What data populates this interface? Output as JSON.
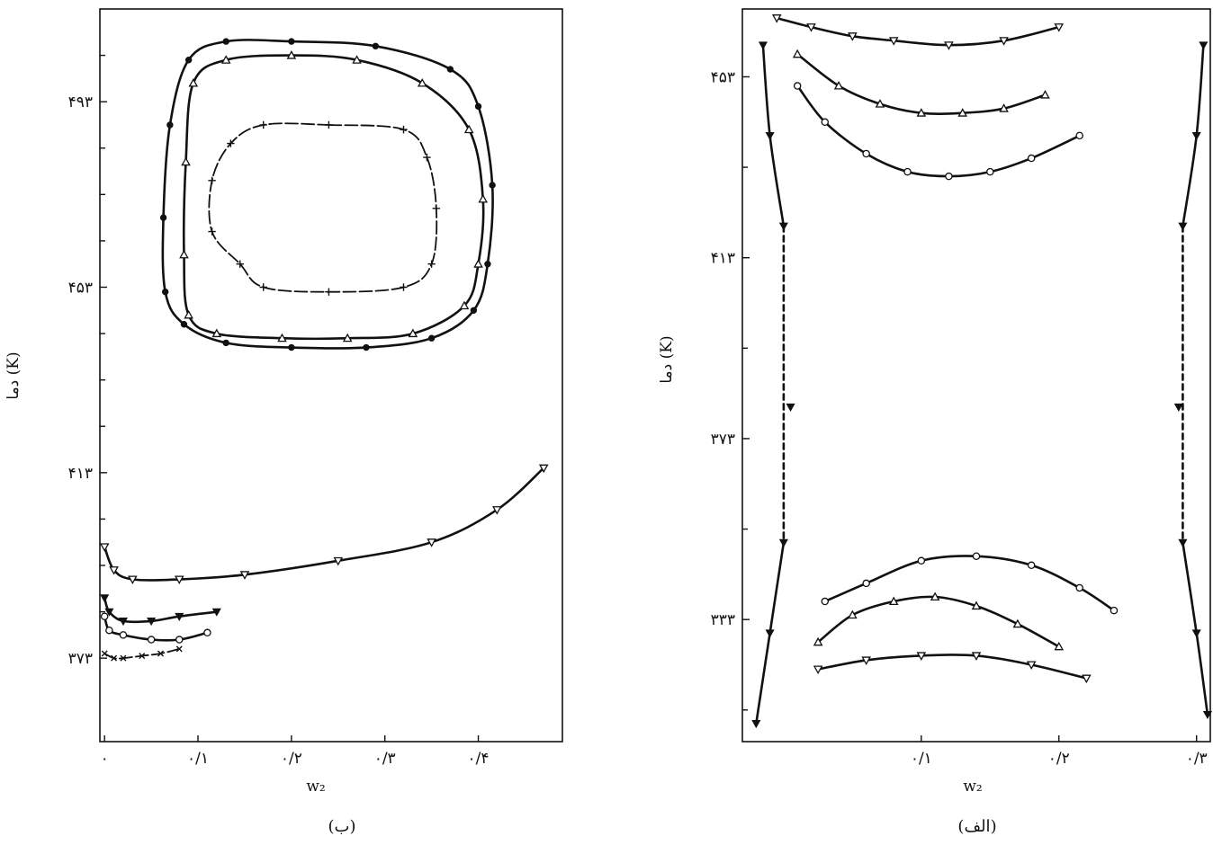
{
  "chart_data": [
    {
      "id": "panel-b",
      "type": "line",
      "caption": "(ب)",
      "xlabel": "w₂",
      "ylabel": "دما (K)",
      "xlim": [
        -0.005,
        0.49
      ],
      "ylim": [
        355,
        513
      ],
      "x_ticks": [
        {
          "v": 0,
          "label": "۰"
        },
        {
          "v": 0.1,
          "label": "۰/۱"
        },
        {
          "v": 0.2,
          "label": "۰/۲"
        },
        {
          "v": 0.3,
          "label": "۰/۳"
        },
        {
          "v": 0.4,
          "label": "۰/۴"
        }
      ],
      "y_ticks": [
        {
          "v": 373,
          "label": "۳۷۳"
        },
        {
          "v": 413,
          "label": "۴۱۳"
        },
        {
          "v": 453,
          "label": "۴۵۳"
        },
        {
          "v": 493,
          "label": "۴۹۳"
        }
      ],
      "y_minor_ticks": [
        383,
        393,
        403,
        423,
        433,
        443,
        463,
        473,
        483,
        503
      ],
      "series": [
        {
          "marker": "dot",
          "closed": true,
          "style": "thick",
          "x": [
            0.2,
            0.29,
            0.37,
            0.4,
            0.415,
            0.41,
            0.395,
            0.35,
            0.28,
            0.2,
            0.13,
            0.085,
            0.065,
            0.063,
            0.07,
            0.09,
            0.13
          ],
          "y": [
            506,
            505,
            500,
            492,
            475,
            458,
            448,
            442,
            440,
            440,
            441,
            445,
            452,
            468,
            488,
            502,
            506
          ]
        },
        {
          "marker": "tri-up",
          "closed": true,
          "style": "thick",
          "x": [
            0.2,
            0.27,
            0.34,
            0.39,
            0.405,
            0.4,
            0.385,
            0.33,
            0.26,
            0.19,
            0.12,
            0.09,
            0.085,
            0.087,
            0.095,
            0.13
          ],
          "y": [
            503,
            502,
            497,
            487,
            472,
            458,
            449,
            443,
            442,
            442,
            443,
            447,
            460,
            480,
            497,
            502
          ]
        },
        {
          "marker": "plus",
          "closed": true,
          "style": "thin",
          "x": [
            0.24,
            0.32,
            0.345,
            0.355,
            0.35,
            0.32,
            0.24,
            0.17,
            0.145,
            0.115,
            0.115,
            0.135,
            0.17
          ],
          "y": [
            488,
            487,
            481,
            470,
            458,
            453,
            452,
            453,
            458,
            465,
            476,
            484,
            488
          ]
        },
        {
          "marker": "tri-down",
          "closed": false,
          "style": "thick",
          "x": [
            0.0,
            0.01,
            0.03,
            0.08,
            0.15,
            0.25,
            0.35,
            0.42,
            0.47
          ],
          "y": [
            397,
            392,
            390,
            390,
            391,
            394,
            398,
            405,
            414
          ]
        },
        {
          "marker": "tri-fill",
          "closed": false,
          "style": "thick",
          "x": [
            0.0,
            0.005,
            0.02,
            0.05,
            0.08,
            0.12
          ],
          "y": [
            386,
            383,
            381,
            381,
            382,
            383
          ]
        },
        {
          "marker": "circle",
          "closed": false,
          "style": "thick",
          "x": [
            0.0,
            0.005,
            0.02,
            0.05,
            0.08,
            0.11
          ],
          "y": [
            382,
            379,
            378,
            377,
            377,
            378.5
          ]
        },
        {
          "marker": "cross",
          "closed": false,
          "style": "thin",
          "x": [
            0.0,
            0.01,
            0.02,
            0.04,
            0.06,
            0.08
          ],
          "y": [
            374,
            373,
            373,
            373.5,
            374,
            375
          ]
        }
      ]
    },
    {
      "id": "panel-a",
      "type": "line",
      "caption": "(الف)",
      "xlabel": "w₂",
      "ylabel": "دما (K)",
      "xlim": [
        -0.03,
        0.31
      ],
      "ylim": [
        306,
        468
      ],
      "x_ticks": [
        {
          "v": 0.1,
          "label": "۰/۱"
        },
        {
          "v": 0.2,
          "label": "۰/۲"
        },
        {
          "v": 0.3,
          "label": "۰/۳"
        }
      ],
      "y_ticks": [
        {
          "v": 333,
          "label": "۳۳۳"
        },
        {
          "v": 373,
          "label": "۳۷۳"
        },
        {
          "v": 413,
          "label": "۴۱۳"
        },
        {
          "v": 453,
          "label": "۴۵۳"
        }
      ],
      "y_minor_ticks": [
        313,
        353,
        393,
        433
      ],
      "series": [
        {
          "marker": "tri-down",
          "closed": false,
          "style": "thick",
          "x": [
            -0.005,
            0.02,
            0.05,
            0.08,
            0.12,
            0.16,
            0.2
          ],
          "y": [
            466,
            464,
            462,
            461,
            460,
            461,
            464
          ]
        },
        {
          "marker": "tri-up",
          "closed": false,
          "style": "thick",
          "x": [
            0.01,
            0.04,
            0.07,
            0.1,
            0.13,
            0.16,
            0.19
          ],
          "y": [
            458,
            451,
            447,
            445,
            445,
            446,
            449
          ]
        },
        {
          "marker": "circle",
          "closed": false,
          "style": "thick",
          "x": [
            0.01,
            0.03,
            0.06,
            0.09,
            0.12,
            0.15,
            0.18,
            0.215
          ],
          "y": [
            451,
            443,
            436,
            432,
            431,
            432,
            435,
            440
          ]
        },
        {
          "marker": "circle",
          "closed": false,
          "style": "thick",
          "x": [
            0.03,
            0.06,
            0.1,
            0.14,
            0.18,
            0.215,
            0.24
          ],
          "y": [
            337,
            341,
            346,
            347,
            345,
            340,
            335
          ]
        },
        {
          "marker": "tri-up",
          "closed": false,
          "style": "thick",
          "x": [
            0.025,
            0.05,
            0.08,
            0.11,
            0.14,
            0.17,
            0.2
          ],
          "y": [
            328,
            334,
            337,
            338,
            336,
            332,
            327
          ]
        },
        {
          "marker": "tri-down",
          "closed": false,
          "style": "thick",
          "x": [
            0.025,
            0.06,
            0.1,
            0.14,
            0.18,
            0.22
          ],
          "y": [
            322,
            324,
            325,
            325,
            323,
            320
          ]
        },
        {
          "marker": "tri-fill",
          "closed": false,
          "style": "thick",
          "dashed_gap": [
            376,
            384
          ],
          "x": [
            -0.015,
            -0.01,
            0.0,
            0.005,
            0.0,
            -0.01,
            -0.02
          ],
          "y": [
            460,
            440,
            420,
            380,
            350,
            330,
            310
          ]
        },
        {
          "marker": "tri-fill",
          "closed": false,
          "style": "thick",
          "dashed_gap": [
            376,
            384
          ],
          "x": [
            0.305,
            0.3,
            0.29,
            0.287,
            0.29,
            0.3,
            0.308
          ],
          "y": [
            460,
            440,
            420,
            380,
            350,
            330,
            312
          ]
        }
      ]
    }
  ]
}
